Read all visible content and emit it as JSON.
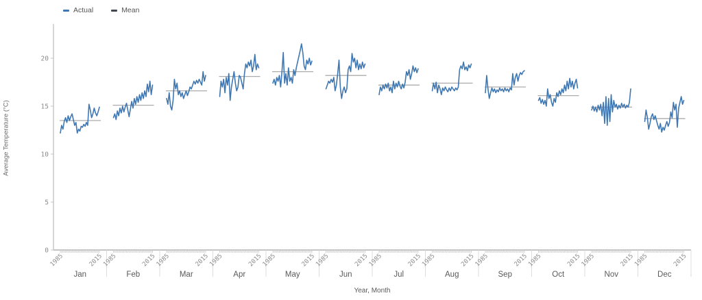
{
  "legend": {
    "items": [
      {
        "id": "actual",
        "label": "Actual",
        "color": "#3f77b2"
      },
      {
        "id": "mean",
        "label": "Mean",
        "color": "#42474f"
      }
    ]
  },
  "chart_data": {
    "type": "line",
    "title": "",
    "xlabel": "Year, Month",
    "ylabel": "Average Temperature (°C)",
    "ylim": [
      0,
      23
    ],
    "yticks": [
      0,
      5,
      10,
      15,
      20
    ],
    "x_range": [
      1985,
      2015
    ],
    "x_tick_labels": [
      "1985",
      "2015"
    ],
    "grid": false,
    "legend_position": "top-left",
    "series_names": [
      "Actual",
      "Mean"
    ],
    "colors": {
      "actual": "#3f77b2",
      "mean_line": "#ababab",
      "mean_legend": "#42474f",
      "axis": "#c4c4c4",
      "separator": "#dcdcdc",
      "minor_tick": "#cfcfcf",
      "tick_text": "#8c8c8c",
      "label_text": "#595959"
    },
    "months": [
      {
        "label": "Jan",
        "mean": 13.5,
        "values": [
          12.2,
          13.0,
          12.6,
          13.4,
          13.8,
          13.3,
          14.0,
          13.5,
          13.9,
          14.2,
          13.6,
          13.0,
          13.3,
          12.2,
          12.6,
          12.4,
          12.9,
          12.8,
          13.1,
          12.9,
          13.3,
          13.0,
          15.2,
          14.6,
          13.8,
          14.2,
          14.8,
          14.3,
          14.0,
          14.4,
          14.9
        ]
      },
      {
        "label": "Feb",
        "mean": 15.1,
        "values": [
          13.8,
          14.2,
          13.6,
          14.5,
          14.0,
          14.8,
          14.3,
          15.0,
          14.4,
          14.9,
          15.3,
          14.6,
          13.9,
          14.7,
          15.5,
          14.8,
          15.8,
          15.2,
          16.0,
          15.4,
          16.2,
          15.6,
          16.4,
          15.8,
          16.6,
          16.0,
          17.3,
          16.5,
          17.6,
          16.2,
          17.2
        ]
      },
      {
        "label": "Mar",
        "mean": 16.6,
        "values": [
          15.8,
          15.2,
          16.4,
          15.0,
          14.6,
          15.6,
          17.8,
          16.8,
          17.4,
          16.2,
          16.6,
          16.0,
          16.4,
          15.8,
          16.2,
          16.6,
          16.1,
          16.5,
          17.0,
          16.8,
          17.2,
          17.6,
          17.3,
          17.7,
          17.4,
          17.8,
          17.5,
          17.2,
          18.6,
          17.6,
          18.2
        ]
      },
      {
        "label": "Apr",
        "mean": 18.1,
        "values": [
          16.0,
          17.6,
          17.0,
          17.8,
          16.4,
          18.0,
          17.2,
          18.4,
          15.6,
          17.0,
          17.8,
          18.6,
          17.4,
          16.6,
          17.0,
          18.2,
          18.0,
          17.4,
          16.8,
          18.4,
          19.4,
          19.0,
          19.6,
          19.2,
          19.8,
          18.6,
          19.2,
          20.4,
          18.8,
          19.4,
          19.0
        ]
      },
      {
        "label": "May",
        "mean": 18.6,
        "values": [
          17.4,
          17.8,
          17.2,
          18.0,
          17.6,
          18.2,
          17.0,
          18.6,
          20.6,
          17.4,
          18.4,
          17.2,
          19.0,
          17.6,
          18.0,
          17.4,
          18.8,
          18.2,
          19.0,
          19.6,
          20.2,
          20.8,
          21.5,
          20.6,
          19.2,
          18.8,
          19.8,
          19.4,
          20.0,
          19.3,
          19.7
        ]
      },
      {
        "label": "Jun",
        "mean": 18.2,
        "values": [
          16.8,
          17.2,
          17.6,
          17.4,
          17.8,
          17.5,
          18.0,
          16.6,
          17.2,
          18.4,
          19.8,
          17.0,
          15.8,
          16.6,
          17.0,
          16.4,
          16.8,
          18.8,
          19.2,
          18.6,
          20.5,
          19.6,
          20.0,
          19.0,
          19.8,
          18.8,
          19.4,
          18.9,
          19.6,
          19.0,
          19.4
        ]
      },
      {
        "label": "Jul",
        "mean": 17.2,
        "values": [
          16.2,
          17.0,
          16.6,
          17.2,
          16.8,
          17.3,
          16.9,
          17.4,
          16.6,
          17.0,
          16.4,
          17.6,
          16.8,
          17.4,
          17.0,
          17.6,
          17.1,
          16.8,
          17.3,
          16.9,
          17.5,
          18.6,
          18.2,
          18.8,
          17.8,
          18.4,
          19.2,
          18.6,
          19.0,
          18.5,
          18.9
        ]
      },
      {
        "label": "Aug",
        "mean": 17.4,
        "values": [
          16.6,
          17.4,
          16.8,
          17.5,
          16.4,
          17.2,
          16.8,
          16.2,
          16.9,
          16.6,
          17.0,
          16.7,
          16.5,
          16.9,
          16.6,
          17.0,
          16.8,
          16.6,
          16.9,
          16.7,
          17.0,
          18.8,
          19.2,
          18.9,
          19.6,
          18.8,
          19.1,
          18.7,
          19.3,
          19.0,
          19.4
        ]
      },
      {
        "label": "Sep",
        "mean": 17.0,
        "values": [
          16.4,
          18.2,
          16.8,
          15.8,
          16.4,
          16.9,
          16.5,
          16.8,
          16.4,
          16.7,
          16.5,
          16.9,
          16.6,
          16.8,
          16.5,
          16.9,
          16.6,
          16.8,
          16.5,
          16.9,
          16.7,
          18.4,
          17.2,
          18.0,
          18.4,
          17.6,
          18.2,
          18.5,
          18.3,
          18.6,
          18.7
        ]
      },
      {
        "label": "Oct",
        "mean": 16.1,
        "values": [
          15.6,
          15.9,
          15.3,
          15.7,
          15.2,
          15.6,
          15.0,
          16.8,
          15.8,
          16.2,
          15.4,
          15.0,
          15.8,
          15.4,
          16.4,
          16.0,
          16.6,
          16.2,
          16.8,
          16.4,
          17.2,
          16.6,
          17.6,
          16.8,
          17.9,
          17.0,
          17.6,
          16.8,
          17.4,
          17.8,
          16.9
        ]
      },
      {
        "label": "Nov",
        "mean": 14.9,
        "values": [
          14.6,
          15.0,
          14.5,
          14.9,
          14.4,
          15.1,
          14.6,
          15.2,
          14.0,
          15.4,
          13.2,
          16.0,
          13.0,
          15.8,
          13.4,
          16.2,
          14.4,
          15.6,
          14.9,
          15.2,
          14.7,
          15.1,
          14.8,
          15.3,
          14.9,
          15.2,
          14.8,
          15.1,
          14.9,
          15.4,
          16.8
        ]
      },
      {
        "label": "Dec",
        "mean": 13.7,
        "values": [
          13.4,
          14.6,
          13.8,
          12.6,
          13.2,
          13.9,
          14.2,
          13.6,
          14.0,
          13.5,
          13.0,
          12.6,
          13.2,
          12.3,
          12.8,
          12.5,
          13.0,
          13.4,
          12.9,
          13.3,
          14.4,
          13.8,
          15.4,
          14.6,
          15.2,
          12.8,
          14.8,
          15.4,
          16.0,
          15.2,
          15.6
        ]
      }
    ]
  }
}
